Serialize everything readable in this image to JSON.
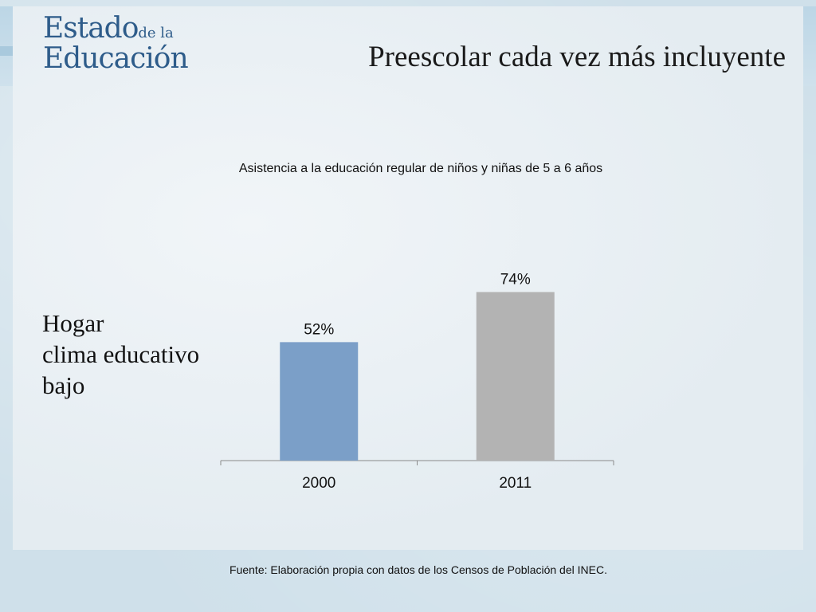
{
  "logo": {
    "line1": "Estado",
    "line1_small": "de la",
    "line2": "Educación"
  },
  "slide_title": "Preescolar cada vez más incluyente",
  "side_label": [
    "Hogar",
    "clima educativo",
    "bajo"
  ],
  "source_note": "Fuente: Elaboración propia con datos de los Censos de Población del INEC.",
  "colors": {
    "bar_2000": "#7b9fc8",
    "bar_2011": "#b3b3b3",
    "logo": "#2e5c8a"
  },
  "chart_data": {
    "type": "bar",
    "title": "Asistencia a la educación regular de niños y niñas de 5 a 6 años",
    "categories": [
      "2000",
      "2011"
    ],
    "values": [
      52,
      74
    ],
    "data_labels": [
      "52%",
      "74%"
    ],
    "xlabel": "",
    "ylabel": "",
    "ylim": [
      0,
      100
    ],
    "grid": false,
    "legend": "none"
  }
}
